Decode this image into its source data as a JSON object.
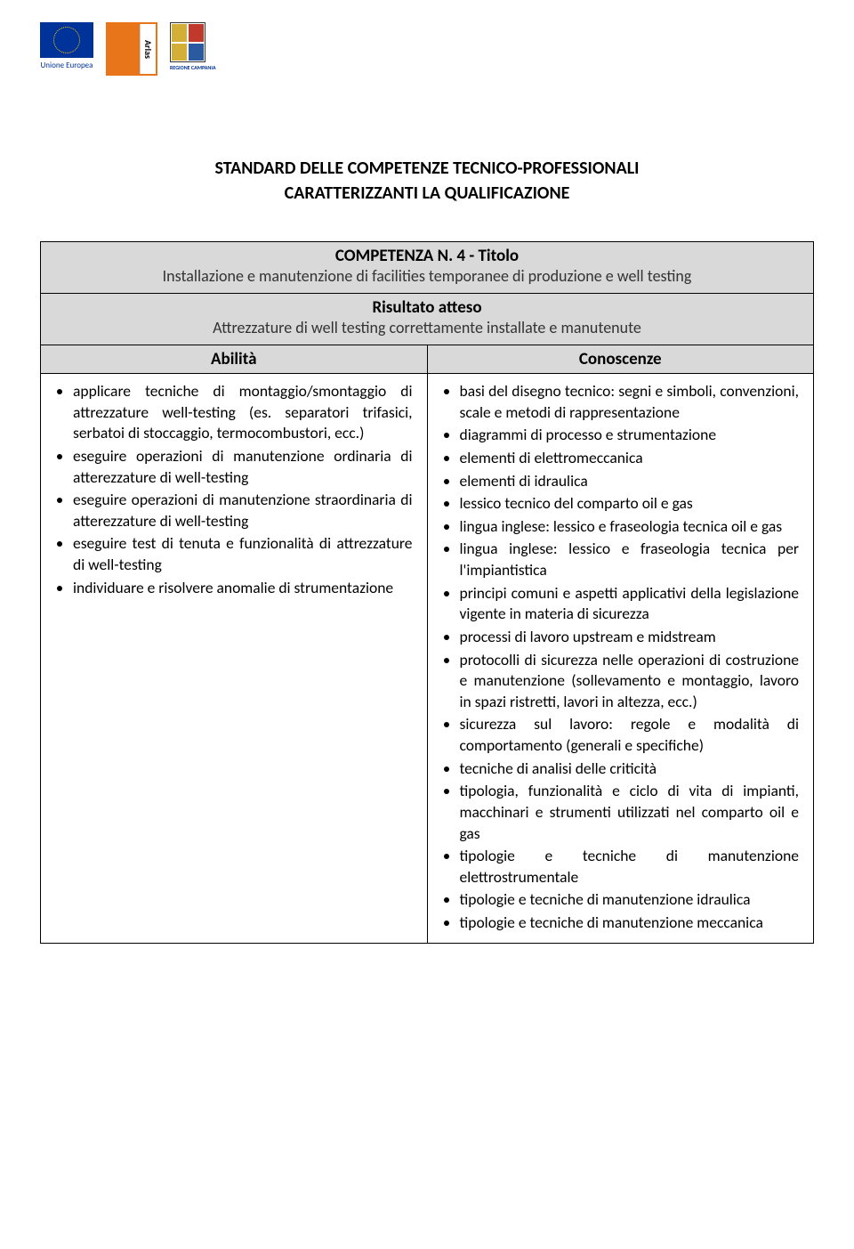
{
  "logos": {
    "eu_label": "Unione Europea",
    "arlas_text": "Arlas",
    "campania_label": "REGIONE CAMPANIA",
    "campania_colors": [
      "#d4af37",
      "#c0392b",
      "#d4af37",
      "#2b5aa0"
    ]
  },
  "doc_title_line1": "STANDARD DELLE COMPETENZE TECNICO-PROFESSIONALI",
  "doc_title_line2": "CARATTERIZZANTI LA QUALIFICAZIONE",
  "competenza": {
    "header_title": "COMPETENZA N. 4 - Titolo",
    "header_description": "Installazione e manutenzione di facilities temporanee di produzione e well testing",
    "risultato_label": "Risultato atteso",
    "risultato_text": "Attrezzature di well testing correttamente installate e manutenute",
    "abilita_label": "Abilità",
    "conoscenze_label": "Conoscenze",
    "abilita": [
      "applicare tecniche di montaggio/smontaggio di attrezzature well-testing (es. separatori trifasici, serbatoi di stoccaggio, termocombustori, ecc.)",
      "eseguire operazioni di manutenzione ordinaria di atterezzature di well-testing",
      "eseguire operazioni di manutenzione straordinaria di atterezzature di well-testing",
      "eseguire test di tenuta e funzionalità di attrezzature di well-testing",
      "individuare e risolvere anomalie di strumentazione"
    ],
    "conoscenze": [
      "basi del disegno tecnico: segni e simboli, convenzioni, scale e metodi di rappresentazione",
      "diagrammi di processo e strumentazione",
      "elementi di elettromeccanica",
      "elementi di idraulica",
      "lessico tecnico del comparto oil e gas",
      "lingua inglese: lessico e fraseologia tecnica oil e gas",
      "lingua inglese: lessico e fraseologia tecnica per l'impiantistica",
      "principi comuni e aspetti applicativi della legislazione vigente in materia di sicurezza",
      "processi di lavoro upstream e midstream",
      "protocolli di sicurezza nelle operazioni di costruzione e manutenzione (sollevamento e montaggio, lavoro in spazi ristretti, lavori in altezza, ecc.)",
      "sicurezza sul lavoro: regole e modalità di comportamento (generali e specifiche)",
      "tecniche di analisi delle criticità",
      "tipologia, funzionalità e ciclo di vita di impianti, macchinari e strumenti utilizzati nel comparto oil e gas",
      "tipologie e tecniche di manutenzione elettrostrumentale",
      "tipologie e tecniche di manutenzione idraulica",
      "tipologie e tecniche di manutenzione meccanica"
    ]
  },
  "colors": {
    "header_bg": "#d9d9d9",
    "border": "#000000",
    "text": "#000000"
  }
}
